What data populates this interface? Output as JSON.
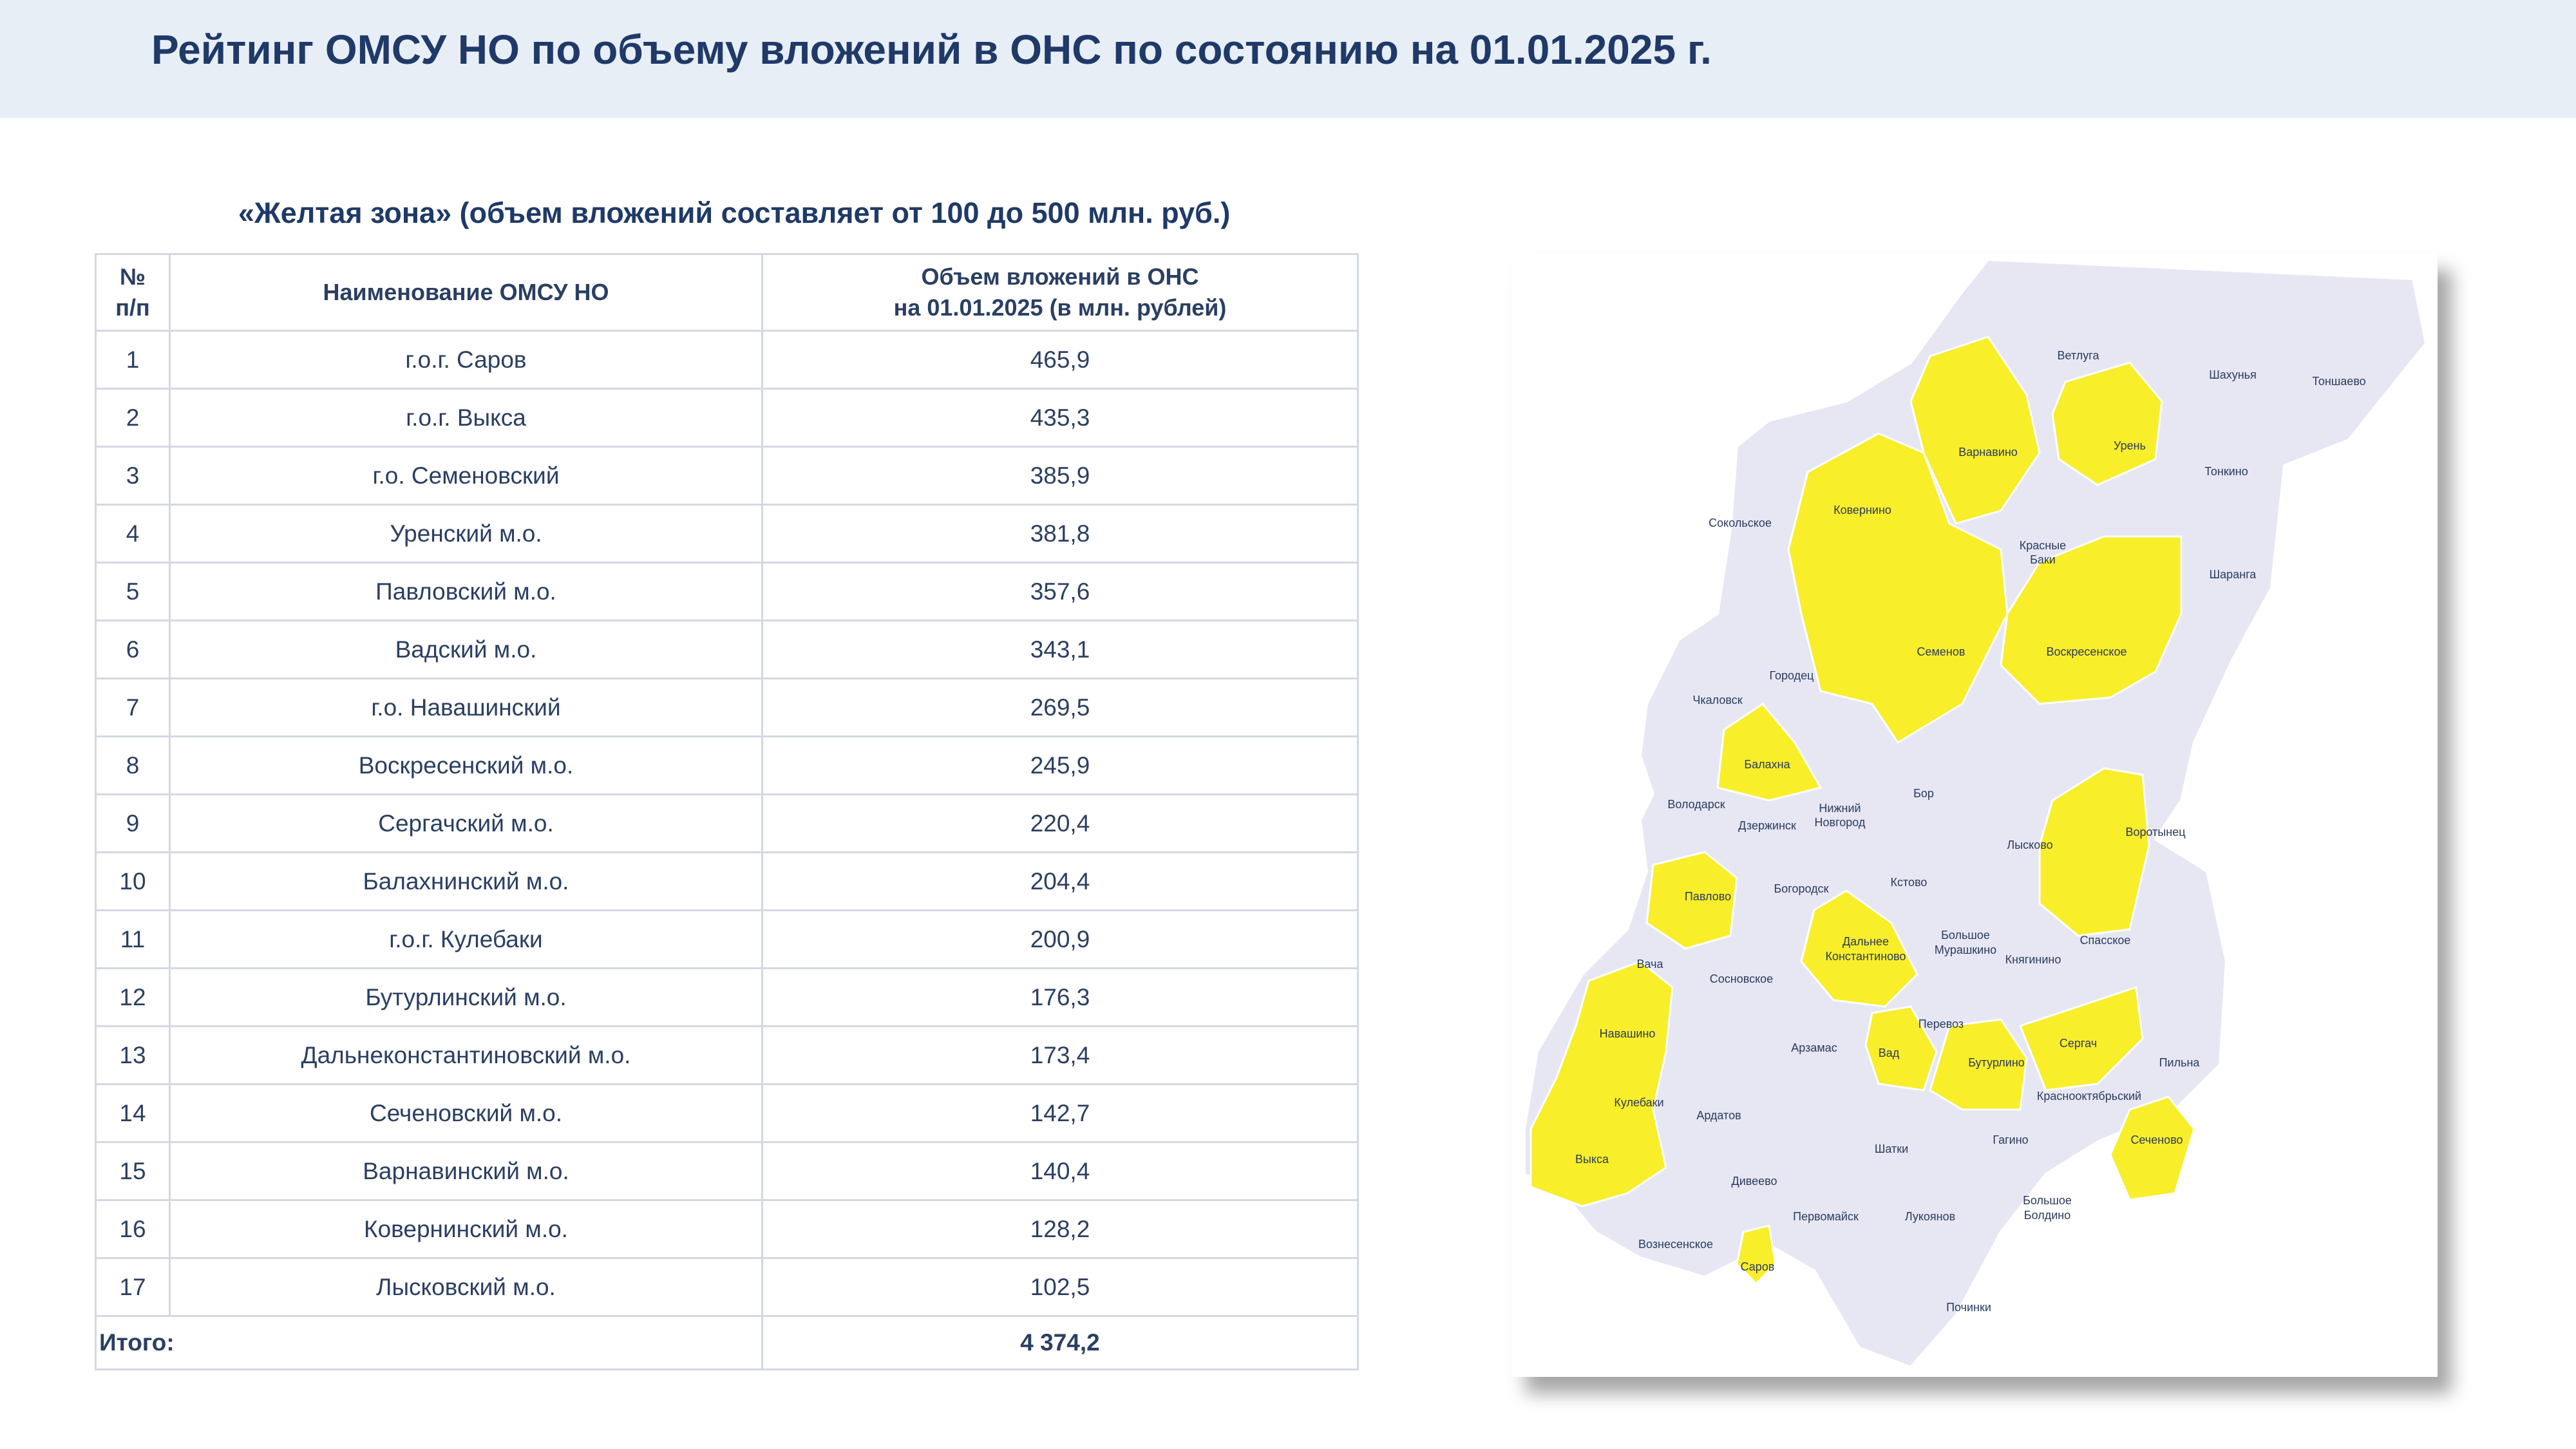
{
  "header": {
    "title": "Рейтинг ОМСУ НО по объему вложений в ОНС по состоянию на 01.01.2025 г."
  },
  "subtitle": "«Желтая зона»  (объем вложений составляет от 100 до 500 млн. руб.)",
  "colors": {
    "header_band": "#e8eef6",
    "title_text": "#1f3a68",
    "yellow_zone": "#f8ee2a",
    "other_zone": "#e6e7f3",
    "map_border": "#ffffff"
  },
  "table": {
    "headers": {
      "num_line1": "№",
      "num_line2": "п/п",
      "name": "Наименование ОМСУ НО",
      "value_line1": "Объем вложений в ОНС",
      "value_line2": "на 01.01.2025 (в млн. рублей)"
    },
    "rows": [
      {
        "num": "1",
        "name": "г.о.г. Саров",
        "value": "465,9"
      },
      {
        "num": "2",
        "name": "г.о.г. Выкса",
        "value": "435,3"
      },
      {
        "num": "3",
        "name": "г.о. Семеновский",
        "value": "385,9"
      },
      {
        "num": "4",
        "name": "Уренский м.о.",
        "value": "381,8"
      },
      {
        "num": "5",
        "name": "Павловский м.о.",
        "value": "357,6"
      },
      {
        "num": "6",
        "name": "Вадский м.о.",
        "value": "343,1"
      },
      {
        "num": "7",
        "name": "г.о. Навашинский",
        "value": "269,5"
      },
      {
        "num": "8",
        "name": "Воскресенский м.о.",
        "value": "245,9"
      },
      {
        "num": "9",
        "name": "Сергачский м.о.",
        "value": "220,4"
      },
      {
        "num": "10",
        "name": "Балахнинский м.о.",
        "value": "204,4"
      },
      {
        "num": "11",
        "name": "г.о.г. Кулебаки",
        "value": "200,9"
      },
      {
        "num": "12",
        "name": "Бутурлинский м.о.",
        "value": "176,3"
      },
      {
        "num": "13",
        "name": "Дальнеконстантиновский м.о.",
        "value": "173,4"
      },
      {
        "num": "14",
        "name": "Сеченовский м.о.",
        "value": "142,7"
      },
      {
        "num": "15",
        "name": "Варнавинский м.о.",
        "value": "140,4"
      },
      {
        "num": "16",
        "name": "Ковернинский м.о.",
        "value": "128,2"
      },
      {
        "num": "17",
        "name": "Лысковский м.о.",
        "value": "102,5"
      }
    ],
    "total": {
      "label": "Итого:",
      "value": "4 374,2"
    }
  },
  "map": {
    "labels": {
      "vetluga": "Ветлуга",
      "shakhunya": "Шахунья",
      "tonshaevo": "Тоншаево",
      "varnavino": "Варнавино",
      "uren": "Урень",
      "tonkino": "Тонкино",
      "sokolskoe": "Сокольское",
      "kovernino": "Ковернино",
      "krasnye_baki_1": "Красные",
      "krasnye_baki_2": "Баки",
      "sharanga": "Шаранга",
      "semenov": "Семенов",
      "voskresenskoe": "Воскресенское",
      "gorodets": "Городец",
      "chkalovsk": "Чкаловск",
      "balakhna": "Балахна",
      "bor": "Бор",
      "volodarsk": "Володарск",
      "dzerzhinsk": "Дзержинск",
      "nn_1": "Нижний",
      "nn_2": "Новгород",
      "lyskovo": "Лысково",
      "vorotynets": "Воротынец",
      "pavlovo": "Павлово",
      "bogorodsk": "Богородск",
      "kstovo": "Кстово",
      "dk_1": "Дальнее",
      "dk_2": "Константиново",
      "bm_1": "Большое",
      "bm_2": "Мурашкино",
      "knyaginino": "Княгинино",
      "spasskoe": "Спасское",
      "vacha": "Вача",
      "sosnovskoe": "Сосновское",
      "navashino": "Навашино",
      "arzamas": "Арзамас",
      "vad": "Вад",
      "perevoz": "Перевоз",
      "buturlino": "Бутурлино",
      "sergach": "Сергач",
      "pilna": "Пильна",
      "kulebaki": "Кулебаки",
      "ardatov": "Ардатов",
      "krasnooktyabrsky": "Краснооктябрьский",
      "gagino": "Гагино",
      "sechenovo": "Сеченово",
      "vyksa": "Выкса",
      "shatki": "Шатки",
      "diveevo": "Дивеево",
      "pervomaysk": "Первомайск",
      "lukoyanov": "Лукоянов",
      "bb_1": "Большое",
      "bb_2": "Болдино",
      "voznesenskoe": "Вознесенское",
      "sarov": "Саров",
      "pochinki": "Починки"
    }
  }
}
